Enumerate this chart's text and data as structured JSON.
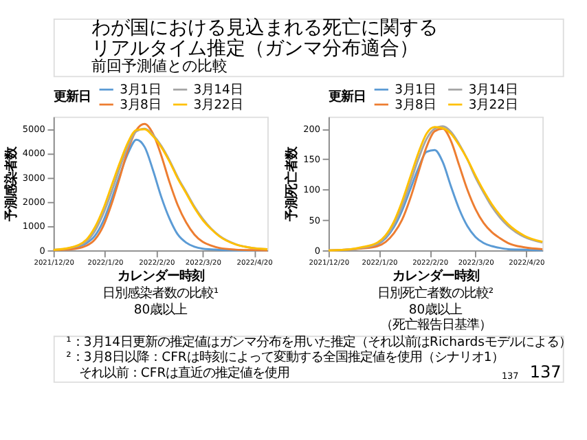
{
  "chart_data": [
    {
      "type": "line",
      "title": "日別感染者数の比較¹",
      "subtitle": "80歳以上",
      "xlabel": "カレンダー時刻",
      "ylabel": "予測感染者数",
      "legend_title": "更新日",
      "legend": "top",
      "grid": false,
      "marker": "none",
      "line_style": "solid",
      "annotations": [
        "わが国における見込まれる死亡に関する",
        "リアルタイム推定（ガンマ分布適合）",
        "前回予測値との比較"
      ],
      "xlim": [
        "2021-12-20",
        "2022-04-28"
      ],
      "xticks": [
        {
          "value": "2021-12-20",
          "label": "2021/12/20"
        },
        {
          "value": "2022-01-20",
          "label": "2022/1/20"
        },
        {
          "value": "2022-02-20",
          "label": "2022/2/20"
        },
        {
          "value": "2022-03-20",
          "label": "2022/3/20"
        },
        {
          "value": "2022-04-20",
          "label": "2022/4/20"
        }
      ],
      "ylim": [
        0,
        5500
      ],
      "yticks": [
        0,
        1000,
        2000,
        3000,
        4000,
        5000
      ],
      "x": [
        "2021-12-20",
        "2021-12-30",
        "2022-01-09",
        "2022-01-14",
        "2022-01-19",
        "2022-01-24",
        "2022-01-29",
        "2022-02-03",
        "2022-02-08",
        "2022-02-13",
        "2022-02-18",
        "2022-02-23",
        "2022-02-28",
        "2022-03-05",
        "2022-03-10",
        "2022-03-15",
        "2022-03-20",
        "2022-03-25",
        "2022-03-30",
        "2022-04-09",
        "2022-04-19",
        "2022-04-28"
      ],
      "series": [
        {
          "name": "3月1日",
          "color": "#5b9bd5",
          "values": [
            20,
            80,
            300,
            600,
            1200,
            2100,
            3100,
            4000,
            4550,
            4250,
            3300,
            2200,
            1300,
            650,
            320,
            150,
            70,
            40,
            20,
            0,
            0,
            0
          ]
        },
        {
          "name": "3月8日",
          "color": "#ed7d31",
          "values": [
            10,
            40,
            200,
            450,
            1000,
            1900,
            3000,
            4150,
            4950,
            5200,
            4800,
            3900,
            2800,
            1850,
            1150,
            650,
            350,
            200,
            100,
            30,
            10,
            0
          ]
        },
        {
          "name": "3月14日",
          "color": "#a5a5a5",
          "values": [
            20,
            100,
            380,
            800,
            1500,
            2400,
            3400,
            4300,
            4900,
            5000,
            4750,
            4300,
            3700,
            3000,
            2400,
            1800,
            1300,
            900,
            600,
            250,
            100,
            50
          ]
        },
        {
          "name": "3月22日",
          "color": "#ffc000",
          "values": [
            20,
            110,
            450,
            950,
            1700,
            2650,
            3600,
            4450,
            4950,
            4980,
            4700,
            4250,
            3650,
            2950,
            2350,
            1750,
            1250,
            880,
            580,
            240,
            100,
            50
          ]
        }
      ]
    },
    {
      "type": "line",
      "title": "日別死亡者数の比較²",
      "subtitle": "80歳以上（死亡報告日基準）",
      "xlabel": "カレンダー時刻",
      "ylabel": "予測死亡者数",
      "legend_title": "更新日",
      "legend": "top",
      "grid": false,
      "marker": "none",
      "line_style": "solid",
      "annotations": [
        "¹：3月14日更新の推定値はガンマ分布を用いた推定（それ以前はRichardsモデルによる）",
        "²：3月8日以降：CFRは時刻によって変動する全国推定値を使用（シナリオ1）",
        "それ以前：CFRは直近の推定値を使用",
        "137",
        "137"
      ],
      "xlim": [
        "2021-12-20",
        "2022-04-30"
      ],
      "xticks": [
        {
          "value": "2021-12-20",
          "label": "2021/12/20"
        },
        {
          "value": "2022-01-20",
          "label": "2022/1/20"
        },
        {
          "value": "2022-02-20",
          "label": "2022/2/20"
        },
        {
          "value": "2022-03-20",
          "label": "2022/3/20"
        },
        {
          "value": "2022-04-20",
          "label": "2022/4/20"
        }
      ],
      "ylim": [
        0,
        220
      ],
      "yticks": [
        0,
        50,
        100,
        150,
        200
      ],
      "x": [
        "2021-12-20",
        "2021-12-30",
        "2022-01-09",
        "2022-01-19",
        "2022-01-24",
        "2022-01-29",
        "2022-02-03",
        "2022-02-08",
        "2022-02-13",
        "2022-02-18",
        "2022-02-23",
        "2022-02-28",
        "2022-03-05",
        "2022-03-10",
        "2022-03-15",
        "2022-03-20",
        "2022-03-25",
        "2022-03-30",
        "2022-04-04",
        "2022-04-09",
        "2022-04-19",
        "2022-04-30"
      ],
      "series": [
        {
          "name": "3月1日",
          "color": "#5b9bd5",
          "values": [
            null,
            null,
            4,
            10,
            20,
            38,
            65,
            100,
            135,
            162,
            165,
            145,
            105,
            68,
            40,
            22,
            12,
            7,
            4,
            2,
            1,
            0
          ]
        },
        {
          "name": "3月8日",
          "color": "#ed7d31",
          "values": [
            0,
            1,
            3,
            7,
            14,
            28,
            50,
            85,
            128,
            170,
            196,
            200,
            180,
            140,
            100,
            68,
            45,
            30,
            20,
            12,
            5,
            2
          ]
        },
        {
          "name": "3月14日",
          "color": "#a5a5a5",
          "values": [
            0,
            1,
            4,
            11,
            22,
            42,
            72,
            110,
            150,
            183,
            200,
            204,
            195,
            175,
            150,
            120,
            95,
            72,
            54,
            40,
            22,
            13
          ]
        },
        {
          "name": "3月22日",
          "color": "#ffc000",
          "values": [
            0,
            1,
            5,
            13,
            25,
            47,
            80,
            120,
            160,
            192,
            203,
            201,
            192,
            173,
            150,
            123,
            98,
            76,
            58,
            43,
            24,
            14
          ]
        }
      ]
    }
  ]
}
